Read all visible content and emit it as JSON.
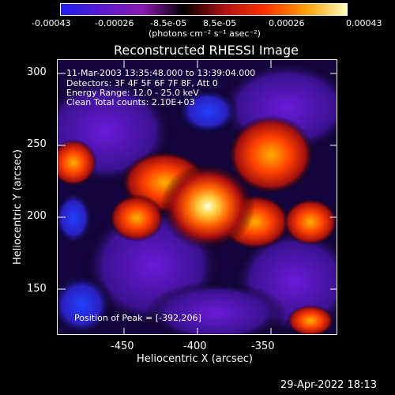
{
  "colorbar": {
    "ticks": [
      "-0.00043",
      "-0.00026",
      "-8.5e-05",
      "8.5e-05",
      "0.00026",
      "0.00043"
    ],
    "units": "(photons cm⁻² s⁻¹ asec⁻²)"
  },
  "plot": {
    "title": "Reconstructed RHESSI Image",
    "annotations": {
      "line1": "11-Mar-2003 13:35:48.000 to 13:39:04.000",
      "line2": "Detectors: 3F 4F 5F 6F 7F 8F, Att 0",
      "line3": "Energy Range: 12.0 - 25.0 keV",
      "line4": "Clean    Total counts: 2.10E+03",
      "peak": "Position of Peak = [-392,206]"
    },
    "xlabel": "Heliocentric X (arcsec)",
    "ylabel": "Heliocentric Y (arcsec)",
    "xticks": [
      "-450",
      "-400",
      "-350"
    ],
    "yticks": [
      "300",
      "250",
      "200",
      "150"
    ]
  },
  "footer": {
    "timestamp": "29-Apr-2022 18:13"
  },
  "colors": {
    "colormap": [
      "#1e1ef0",
      "#5a1ad0",
      "#8a1ab0",
      "#000000",
      "#b01010",
      "#ff3000",
      "#ffa000",
      "#ffffc0"
    ]
  }
}
